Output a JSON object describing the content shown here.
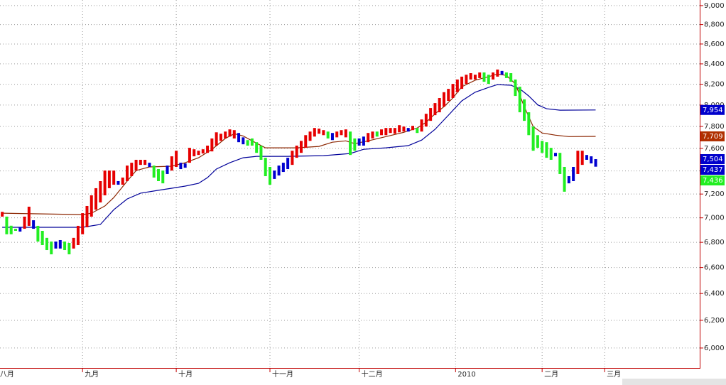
{
  "chart_data": {
    "type": "range-bar",
    "log_scale": true,
    "grid": true,
    "xlim": [
      -0.5,
      156
    ],
    "ylim": [
      5860,
      9060
    ],
    "xticks": [
      {
        "value": -1,
        "label": "八月"
      },
      {
        "value": 18,
        "label": "九月"
      },
      {
        "value": 39,
        "label": "十月"
      },
      {
        "value": 60,
        "label": "十一月"
      },
      {
        "value": 80,
        "label": "十二月"
      },
      {
        "value": 101.6,
        "label": "2010"
      },
      {
        "value": 121,
        "label": "二月"
      },
      {
        "value": 135,
        "label": "三月"
      }
    ],
    "yticks": [
      {
        "value": 6000,
        "label": "6,000"
      },
      {
        "value": 6200,
        "label": "6,200"
      },
      {
        "value": 6400,
        "label": "6,400"
      },
      {
        "value": 6600,
        "label": "6,600"
      },
      {
        "value": 6800,
        "label": "6,800"
      },
      {
        "value": 7000,
        "label": "7,000"
      },
      {
        "value": 7200,
        "label": "7,200"
      },
      {
        "value": 7400,
        "label": "7,400"
      },
      {
        "value": 7600,
        "label": "7,600"
      },
      {
        "value": 7800,
        "label": "7,800"
      },
      {
        "value": 8000,
        "label": "8,000"
      },
      {
        "value": 8200,
        "label": "8,200"
      },
      {
        "value": 8400,
        "label": "8,400"
      },
      {
        "value": 8600,
        "label": "8,600"
      },
      {
        "value": 8800,
        "label": "8,800"
      },
      {
        "value": 9000,
        "label": "9,000"
      }
    ],
    "series": [
      {
        "color": "#e60000",
        "x": [
          0,
          5,
          6,
          16,
          17,
          18,
          19,
          20,
          21,
          22,
          23,
          24,
          25,
          27,
          28,
          29,
          30,
          31,
          32,
          38,
          39,
          42,
          43,
          44,
          45,
          46,
          47,
          48,
          49,
          50,
          51,
          52,
          65,
          66,
          67,
          68,
          69,
          70,
          71,
          72,
          75,
          76,
          77,
          82,
          83,
          85,
          86,
          87,
          88,
          89,
          90,
          92,
          94,
          95,
          96,
          97,
          98,
          99,
          100,
          101,
          102,
          103,
          104,
          105,
          106,
          107,
          110,
          111,
          129,
          130
        ],
        "high": [
          7050,
          7010,
          7093,
          6836,
          6934,
          7039,
          7099,
          7189,
          7250,
          7311,
          7403,
          7403,
          7403,
          7342,
          7447,
          7472,
          7498,
          7498,
          7498,
          7529,
          7579,
          7605,
          7592,
          7579,
          7592,
          7625,
          7690,
          7746,
          7733,
          7753,
          7773,
          7766,
          7579,
          7625,
          7668,
          7720,
          7753,
          7786,
          7780,
          7766,
          7753,
          7766,
          7773,
          7740,
          7753,
          7773,
          7786,
          7786,
          7786,
          7812,
          7799,
          7806,
          7865,
          7918,
          7972,
          8019,
          8067,
          8123,
          8155,
          8203,
          8246,
          8274,
          8293,
          8308,
          8293,
          8315,
          8315,
          8344,
          7579,
          7579
        ],
        "low": [
          7010,
          6910,
          6934,
          6750,
          6778,
          6865,
          6922,
          7010,
          7068,
          7129,
          7189,
          7250,
          7280,
          7280,
          7311,
          7354,
          7403,
          7453,
          7453,
          7403,
          7435,
          7472,
          7529,
          7541,
          7554,
          7560,
          7573,
          7625,
          7668,
          7690,
          7707,
          7690,
          7453,
          7516,
          7560,
          7605,
          7668,
          7707,
          7733,
          7720,
          7700,
          7720,
          7700,
          7656,
          7690,
          7720,
          7720,
          7740,
          7733,
          7746,
          7753,
          7766,
          7753,
          7799,
          7852,
          7905,
          7932,
          7985,
          8040,
          8067,
          8123,
          8155,
          8203,
          8246,
          8246,
          8260,
          8246,
          8274,
          7373,
          7453
        ]
      },
      {
        "color": "#22ee22",
        "x": [
          1,
          2,
          3,
          8,
          9,
          10,
          11,
          14,
          15,
          34,
          35,
          36,
          55,
          56,
          57,
          58,
          59,
          60,
          73,
          78,
          79,
          84,
          93,
          108,
          109,
          113,
          114,
          115,
          116,
          117,
          118,
          119,
          120,
          121,
          122,
          123,
          125,
          126
        ],
        "high": [
          7010,
          6935,
          6910,
          6934,
          6893,
          6836,
          6806,
          6806,
          6795,
          7447,
          7416,
          7403,
          7675,
          7690,
          7656,
          7625,
          7516,
          7435,
          7753,
          7753,
          7690,
          7753,
          7786,
          8315,
          8293,
          8315,
          8308,
          8246,
          8176,
          8054,
          7932,
          7799,
          7720,
          7668,
          7656,
          7605,
          7560,
          7435
        ],
        "low": [
          6865,
          6865,
          6893,
          6806,
          6778,
          6738,
          6704,
          6738,
          6704,
          7342,
          7311,
          7292,
          7625,
          7625,
          7560,
          7498,
          7354,
          7280,
          7690,
          7541,
          7579,
          7707,
          7740,
          8224,
          8203,
          8260,
          8224,
          8087,
          7932,
          7852,
          7720,
          7579,
          7605,
          7560,
          7516,
          7498,
          7373,
          7220
        ]
      },
      {
        "color": "#0000d0",
        "x": [
          4,
          7,
          12,
          13,
          26,
          33,
          37,
          40,
          41,
          53,
          54,
          61,
          62,
          63,
          64,
          74,
          80,
          81,
          91,
          112,
          124,
          127,
          128,
          131,
          132,
          133
        ],
        "high": [
          6922,
          6980,
          6806,
          6818,
          7311,
          7472,
          7447,
          7472,
          7466,
          7740,
          7700,
          7403,
          7447,
          7472,
          7516,
          7740,
          7690,
          7707,
          7786,
          8330,
          7560,
          7354,
          7435,
          7541,
          7529,
          7504
        ],
        "low": [
          6887,
          6910,
          6750,
          6750,
          7280,
          7435,
          7373,
          7416,
          7428,
          7656,
          7637,
          7330,
          7360,
          7391,
          7416,
          7675,
          7625,
          7625,
          7753,
          8293,
          7529,
          7292,
          7311,
          7498,
          7466,
          7437
        ]
      }
    ],
    "lines": [
      {
        "color": "#000099",
        "x": [
          0,
          18,
          22,
          25,
          28,
          31,
          35,
          38,
          41,
          44,
          46,
          48,
          51,
          54,
          57,
          64,
          72,
          78,
          81,
          86,
          91,
          94,
          97,
          100,
          103,
          106,
          109,
          111,
          114,
          116,
          118,
          120,
          122,
          125,
          133
        ],
        "values": [
          6922,
          6922,
          6945,
          7068,
          7158,
          7208,
          7232,
          7250,
          7268,
          7292,
          7342,
          7416,
          7472,
          7516,
          7529,
          7529,
          7535,
          7554,
          7592,
          7605,
          7625,
          7675,
          7773,
          7905,
          8040,
          8123,
          8169,
          8196,
          8190,
          8155,
          8087,
          8002,
          7965,
          7952,
          7954
        ]
      },
      {
        "color": "#8b2500",
        "x": [
          0,
          18,
          20,
          23,
          25,
          28,
          30,
          33,
          38,
          41,
          44,
          47,
          50,
          52,
          54,
          56,
          59,
          66,
          71,
          74,
          77,
          79,
          82,
          86,
          90,
          93,
          95,
          97,
          99,
          101,
          103,
          106,
          109,
          111,
          113,
          115,
          117,
          119,
          121,
          124,
          127,
          133
        ],
        "values": [
          7039,
          7027,
          7039,
          7099,
          7170,
          7311,
          7403,
          7435,
          7441,
          7472,
          7516,
          7592,
          7690,
          7733,
          7713,
          7668,
          7605,
          7605,
          7618,
          7656,
          7668,
          7643,
          7668,
          7707,
          7746,
          7786,
          7839,
          7918,
          7985,
          8067,
          8176,
          8239,
          8274,
          8300,
          8286,
          8203,
          7985,
          7799,
          7740,
          7720,
          7707,
          7709
        ]
      }
    ],
    "price_labels": [
      {
        "value": 7954,
        "label": "7,954",
        "color": "#0000cc"
      },
      {
        "value": 7709,
        "label": "7,709",
        "color": "#b03000"
      },
      {
        "value": 7504,
        "label": "7,504",
        "color": "#0000cc"
      },
      {
        "value": 7437,
        "label": "7,437",
        "color": "#0000cc"
      },
      {
        "value": 7436,
        "label": "7,436",
        "color": "#22ee22"
      }
    ]
  }
}
